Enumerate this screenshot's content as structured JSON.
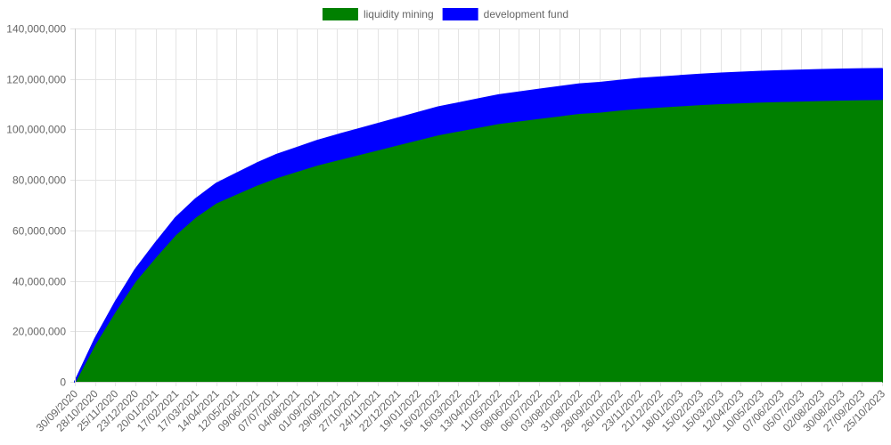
{
  "chart_data": {
    "type": "area",
    "stacked": true,
    "legend_position": "top",
    "grid": true,
    "ylim": [
      0,
      140000000
    ],
    "y_ticks": [
      0,
      20000000,
      40000000,
      60000000,
      80000000,
      100000000,
      120000000,
      140000000
    ],
    "y_tick_labels": [
      "0",
      "20,000,000",
      "40,000,000",
      "60,000,000",
      "80,000,000",
      "100,000,000",
      "120,000,000",
      "140,000,000"
    ],
    "x": [
      "30/09/2020",
      "28/10/2020",
      "25/11/2020",
      "23/12/2020",
      "20/01/2021",
      "17/02/2021",
      "17/03/2021",
      "14/04/2021",
      "12/05/2021",
      "09/06/2021",
      "07/07/2021",
      "04/08/2021",
      "01/09/2021",
      "29/09/2021",
      "27/10/2021",
      "24/11/2021",
      "22/12/2021",
      "19/01/2022",
      "16/02/2022",
      "16/03/2022",
      "13/04/2022",
      "11/05/2022",
      "08/06/2022",
      "06/07/2022",
      "03/08/2022",
      "31/08/2022",
      "28/09/2022",
      "26/10/2022",
      "23/11/2022",
      "21/12/2022",
      "18/01/2023",
      "15/02/2023",
      "15/03/2023",
      "12/04/2023",
      "10/05/2023",
      "07/06/2023",
      "05/07/2023",
      "02/08/2023",
      "30/08/2023",
      "27/09/2023",
      "25/10/2023"
    ],
    "series": [
      {
        "name": "liquidity mining",
        "color": "#008000",
        "values": [
          0,
          15000000,
          28000000,
          40000000,
          49500000,
          58500000,
          65500000,
          71000000,
          74500000,
          78000000,
          81000000,
          83500000,
          86000000,
          88000000,
          90000000,
          92000000,
          94000000,
          96000000,
          98000000,
          99500000,
          101000000,
          102500000,
          103500000,
          104500000,
          105500000,
          106500000,
          107000000,
          107800000,
          108500000,
          109000000,
          109500000,
          110000000,
          110400000,
          110700000,
          111000000,
          111200000,
          111400000,
          111600000,
          111800000,
          111900000,
          112000000
        ]
      },
      {
        "name": "development fund",
        "color": "#0000ff",
        "values": [
          0,
          2000000,
          3500000,
          4500000,
          5500000,
          6500000,
          7000000,
          7500000,
          8000000,
          8500000,
          9000000,
          9200000,
          9500000,
          9800000,
          10000000,
          10200000,
          10400000,
          10600000,
          10800000,
          10900000,
          11000000,
          11100000,
          11200000,
          11300000,
          11350000,
          11400000,
          11500000,
          11550000,
          11600000,
          11650000,
          11700000,
          11750000,
          11800000,
          11850000,
          11900000,
          11950000,
          12000000,
          12000000,
          12000000,
          12000000,
          12000000
        ]
      }
    ]
  }
}
